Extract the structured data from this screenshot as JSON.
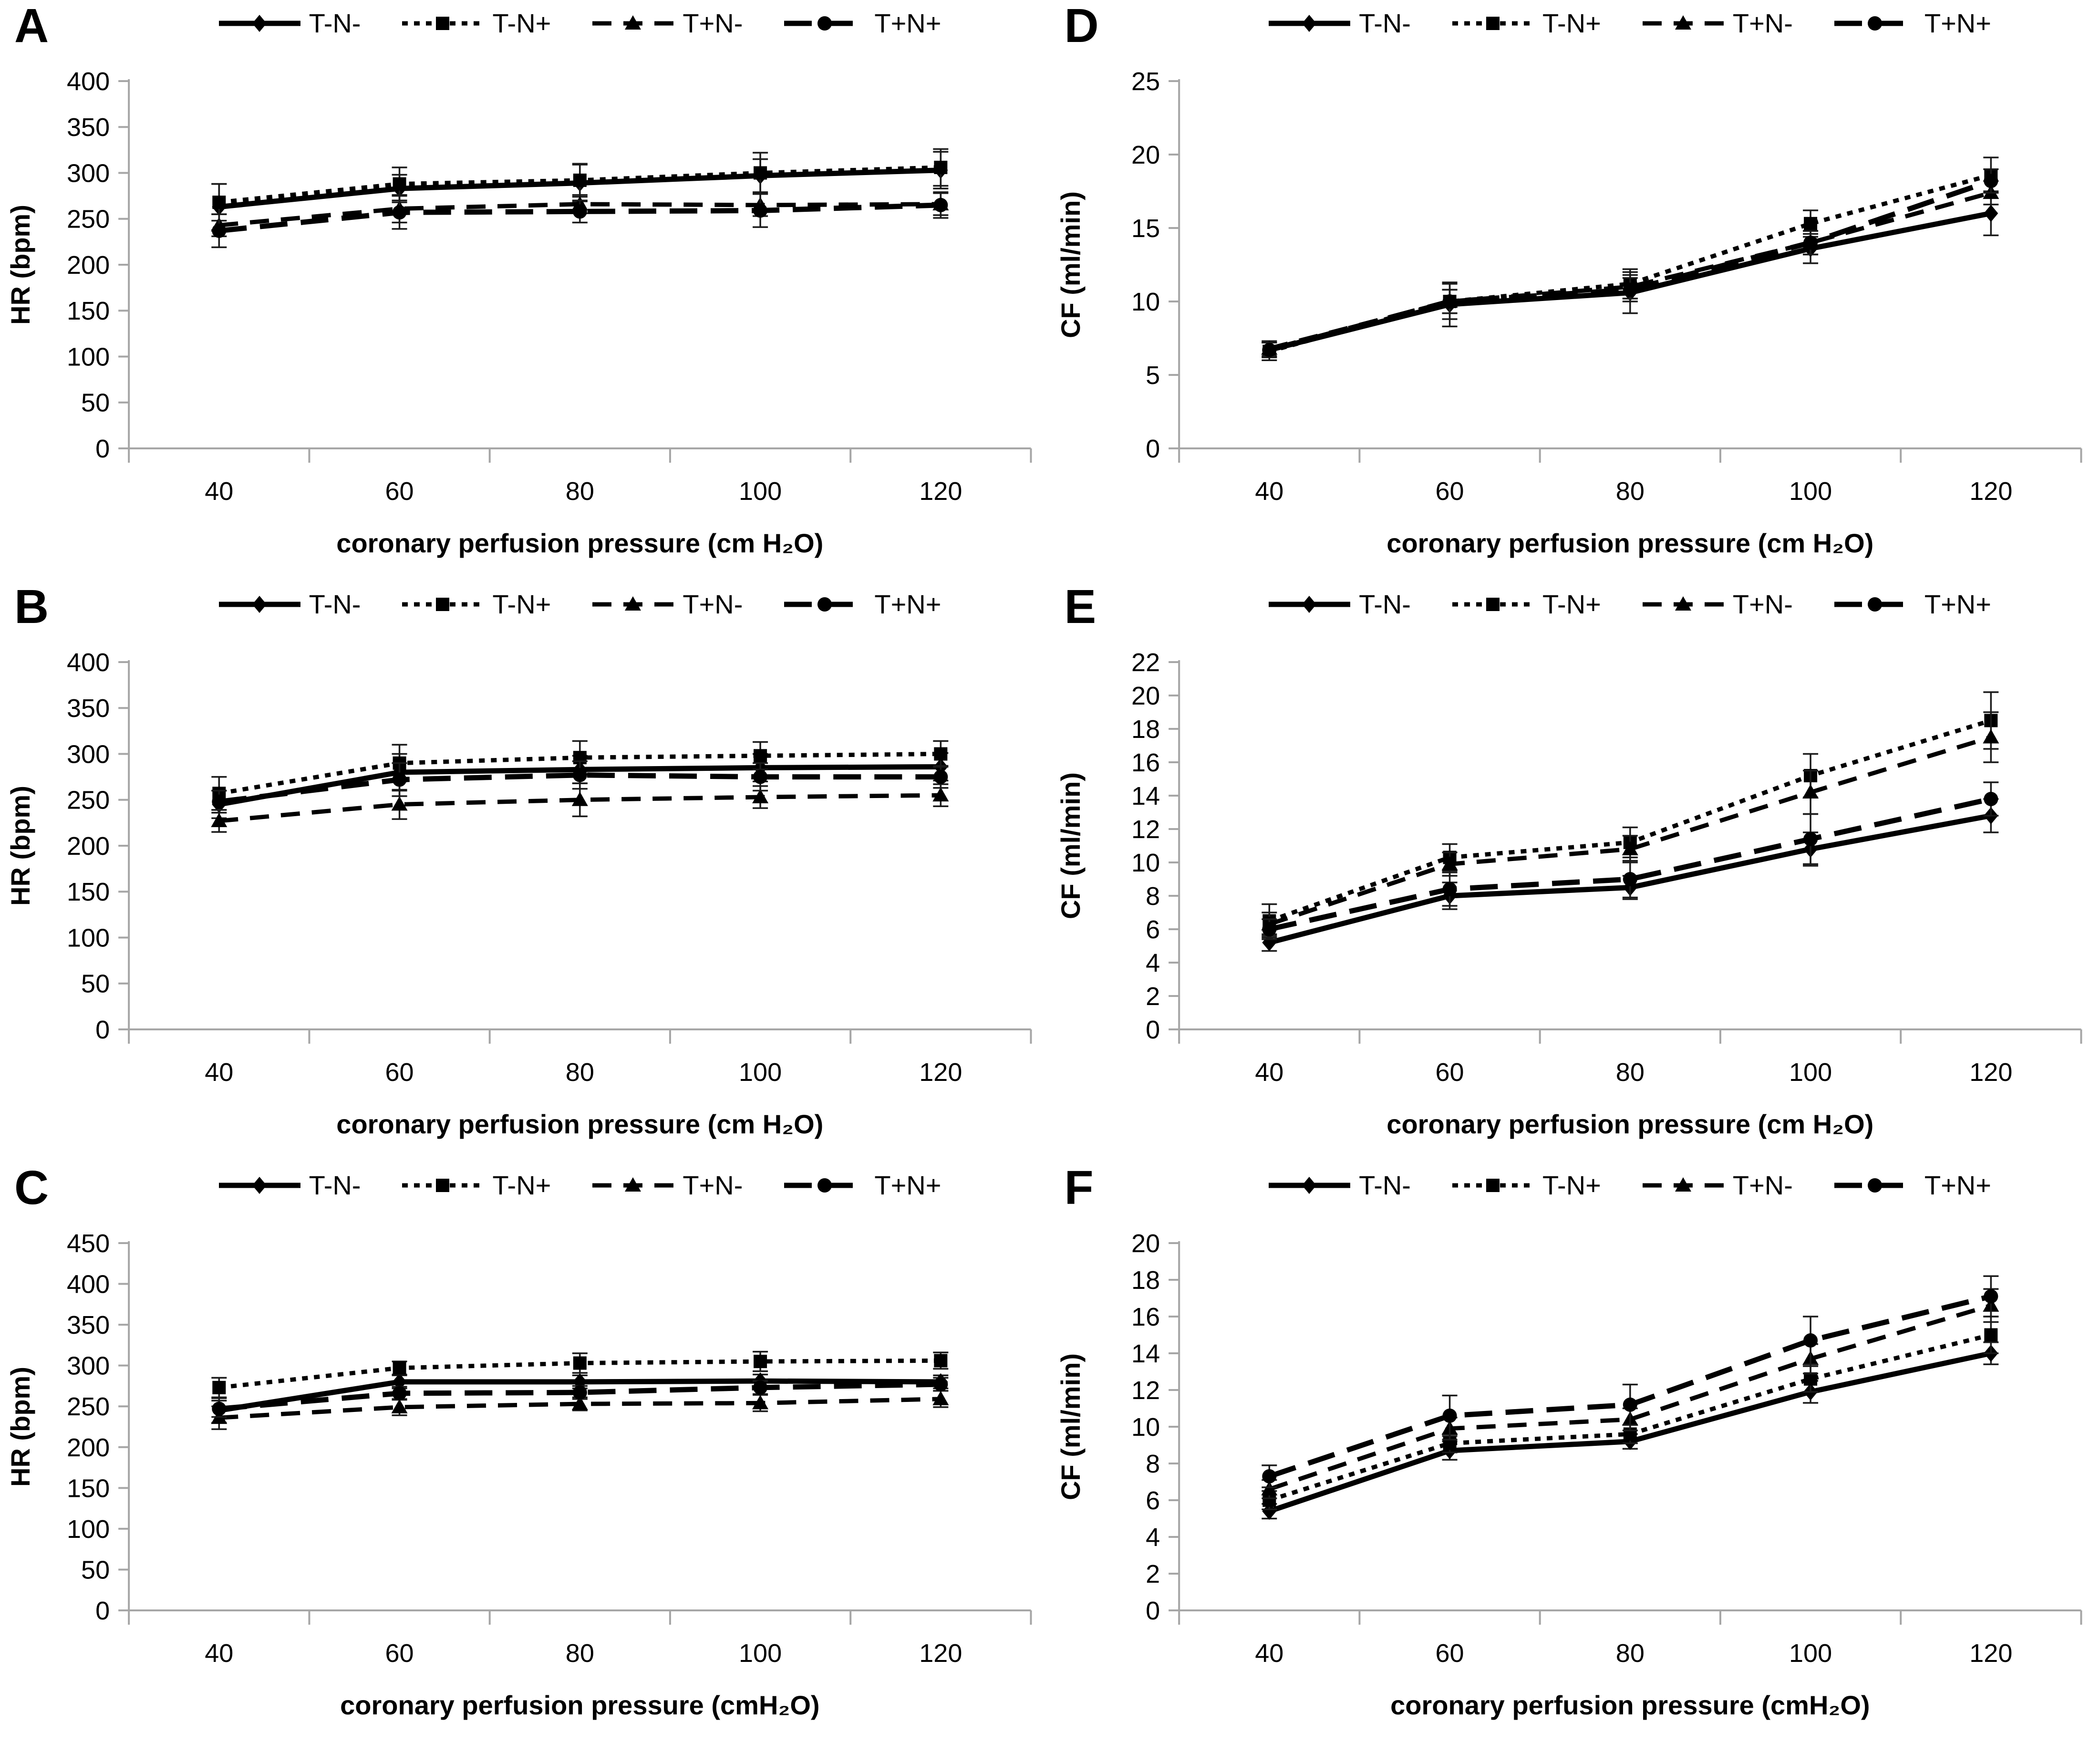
{
  "figure": {
    "legend": [
      {
        "label": "T-N-",
        "marker": "diamond",
        "line": "solid"
      },
      {
        "label": "T-N+",
        "marker": "square",
        "line": "dotted"
      },
      {
        "label": "T+N-",
        "marker": "triangle",
        "line": "dashed"
      },
      {
        "label": "T+N+",
        "marker": "circle",
        "line": "longdash"
      }
    ],
    "colors": {
      "series": "#000000",
      "axis": "#a6a6a6",
      "error_bar": "#1a1a1a",
      "background": "#ffffff"
    }
  },
  "chart_data": [
    {
      "panel_label": "A",
      "type": "line",
      "grid": false,
      "legend_position": "top",
      "ylabel": "HR (bpm)",
      "xlabel": "coronary perfusion pressure (cm H₂O)",
      "categories": [
        40,
        60,
        80,
        100,
        120
      ],
      "ylim": [
        0,
        400
      ],
      "ytick_step": 50,
      "series": [
        {
          "name": "T-N-",
          "marker": "diamond",
          "line": "solid",
          "values": [
            263,
            283,
            289,
            297,
            303
          ],
          "errors": [
            25,
            15,
            20,
            18,
            20
          ]
        },
        {
          "name": "T-N+",
          "marker": "square",
          "line": "dotted",
          "values": [
            268,
            288,
            292,
            300,
            306
          ],
          "errors": [
            20,
            18,
            18,
            22,
            20
          ]
        },
        {
          "name": "T+N-",
          "marker": "triangle",
          "line": "dashed",
          "values": [
            243,
            261,
            266,
            265,
            266
          ],
          "errors": [
            12,
            15,
            10,
            12,
            12
          ]
        },
        {
          "name": "T+N+",
          "marker": "circle",
          "line": "longdash",
          "values": [
            237,
            257,
            258,
            259,
            265
          ],
          "errors": [
            18,
            18,
            12,
            18,
            14
          ]
        }
      ]
    },
    {
      "panel_label": "B",
      "type": "line",
      "grid": false,
      "legend_position": "top",
      "ylabel": "HR (bpm)",
      "xlabel": "coronary perfusion pressure (cm H₂O)",
      "categories": [
        40,
        60,
        80,
        100,
        120
      ],
      "ylim": [
        0,
        400
      ],
      "ytick_step": 50,
      "series": [
        {
          "name": "T-N-",
          "marker": "diamond",
          "line": "solid",
          "values": [
            245,
            280,
            283,
            285,
            286
          ],
          "errors": [
            15,
            20,
            15,
            15,
            15
          ]
        },
        {
          "name": "T-N+",
          "marker": "square",
          "line": "dotted",
          "values": [
            257,
            290,
            296,
            298,
            300
          ],
          "errors": [
            18,
            20,
            18,
            15,
            14
          ]
        },
        {
          "name": "T+N-",
          "marker": "triangle",
          "line": "dashed",
          "values": [
            227,
            245,
            250,
            253,
            255
          ],
          "errors": [
            12,
            16,
            18,
            12,
            12
          ]
        },
        {
          "name": "T+N+",
          "marker": "circle",
          "line": "longdash",
          "values": [
            248,
            272,
            277,
            275,
            275
          ],
          "errors": [
            12,
            18,
            15,
            15,
            12
          ]
        }
      ]
    },
    {
      "panel_label": "C",
      "type": "line",
      "grid": false,
      "legend_position": "top",
      "ylabel": "HR (bpm)",
      "xlabel": "coronary perfusion pressure (cmH₂O)",
      "categories": [
        40,
        60,
        80,
        100,
        120
      ],
      "ylim": [
        0,
        450
      ],
      "ytick_step": 50,
      "series": [
        {
          "name": "T-N-",
          "marker": "diamond",
          "line": "solid",
          "values": [
            245,
            280,
            280,
            281,
            280
          ],
          "errors": [
            15,
            8,
            8,
            8,
            8
          ]
        },
        {
          "name": "T-N+",
          "marker": "square",
          "line": "dotted",
          "values": [
            273,
            297,
            303,
            305,
            306
          ],
          "errors": [
            12,
            8,
            12,
            12,
            10
          ]
        },
        {
          "name": "T+N-",
          "marker": "triangle",
          "line": "dashed",
          "values": [
            236,
            249,
            253,
            254,
            259
          ],
          "errors": [
            14,
            10,
            8,
            10,
            10
          ]
        },
        {
          "name": "T+N+",
          "marker": "circle",
          "line": "longdash",
          "values": [
            247,
            266,
            267,
            273,
            277
          ],
          "errors": [
            10,
            8,
            8,
            8,
            8
          ]
        }
      ]
    },
    {
      "panel_label": "D",
      "type": "line",
      "grid": false,
      "legend_position": "top",
      "ylabel": "CF (ml/min)",
      "xlabel": "coronary perfusion pressure (cm H₂O)",
      "categories": [
        40,
        60,
        80,
        100,
        120
      ],
      "ylim": [
        0,
        25
      ],
      "ytick_step": 5,
      "series": [
        {
          "name": "T-N-",
          "marker": "diamond",
          "line": "solid",
          "values": [
            6.7,
            9.8,
            10.6,
            13.6,
            16.0
          ],
          "errors": [
            0.5,
            1.5,
            1.4,
            1.0,
            1.5
          ]
        },
        {
          "name": "T-N+",
          "marker": "square",
          "line": "dotted",
          "values": [
            6.6,
            10.0,
            11.2,
            15.3,
            18.6
          ],
          "errors": [
            0.6,
            1.2,
            1.0,
            0.9,
            1.2
          ]
        },
        {
          "name": "T+N-",
          "marker": "triangle",
          "line": "dashed",
          "values": [
            6.8,
            10.0,
            11.0,
            14.0,
            17.4
          ],
          "errors": [
            0.5,
            0.8,
            0.8,
            0.8,
            0.8
          ]
        },
        {
          "name": "T+N+",
          "marker": "circle",
          "line": "longdash",
          "values": [
            6.7,
            10.0,
            10.8,
            14.0,
            18.2
          ],
          "errors": [
            0.5,
            0.8,
            0.8,
            0.8,
            0.8
          ]
        }
      ]
    },
    {
      "panel_label": "E",
      "type": "line",
      "grid": false,
      "legend_position": "top",
      "ylabel": "CF (ml/min)",
      "xlabel": "coronary perfusion pressure (cm H₂O)",
      "categories": [
        40,
        60,
        80,
        100,
        120
      ],
      "ylim": [
        0,
        22
      ],
      "ytick_step": 2,
      "series": [
        {
          "name": "T-N-",
          "marker": "diamond",
          "line": "solid",
          "values": [
            5.2,
            8.0,
            8.5,
            10.8,
            12.8
          ],
          "errors": [
            0.5,
            0.8,
            0.7,
            1.0,
            1.0
          ]
        },
        {
          "name": "T-N+",
          "marker": "square",
          "line": "dotted",
          "values": [
            6.5,
            10.3,
            11.2,
            15.2,
            18.5
          ],
          "errors": [
            1.0,
            0.8,
            0.9,
            1.3,
            1.7
          ]
        },
        {
          "name": "T+N-",
          "marker": "triangle",
          "line": "dashed",
          "values": [
            6.3,
            9.9,
            10.8,
            14.2,
            17.5
          ],
          "errors": [
            0.7,
            0.7,
            0.8,
            1.3,
            1.5
          ]
        },
        {
          "name": "T+N+",
          "marker": "circle",
          "line": "longdash",
          "values": [
            6.0,
            8.4,
            9.0,
            11.4,
            13.8
          ],
          "errors": [
            0.6,
            1.0,
            1.1,
            1.5,
            1.0
          ]
        }
      ]
    },
    {
      "panel_label": "F",
      "type": "line",
      "grid": false,
      "legend_position": "top",
      "ylabel": "CF (ml/min)",
      "xlabel": "coronary perfusion pressure (cmH₂O)",
      "categories": [
        40,
        60,
        80,
        100,
        120
      ],
      "ylim": [
        0,
        20
      ],
      "ytick_step": 2,
      "series": [
        {
          "name": "T-N-",
          "marker": "diamond",
          "line": "solid",
          "values": [
            5.4,
            8.7,
            9.2,
            11.9,
            14.0
          ],
          "errors": [
            0.4,
            0.5,
            0.4,
            0.6,
            0.6
          ]
        },
        {
          "name": "T-N+",
          "marker": "square",
          "line": "dotted",
          "values": [
            6.0,
            9.1,
            9.6,
            12.6,
            15.0
          ],
          "errors": [
            0.5,
            0.5,
            0.5,
            0.7,
            1.0
          ]
        },
        {
          "name": "T+N-",
          "marker": "triangle",
          "line": "dashed",
          "values": [
            6.6,
            9.9,
            10.4,
            13.7,
            16.6
          ],
          "errors": [
            0.5,
            0.6,
            0.6,
            0.8,
            0.9
          ]
        },
        {
          "name": "T+N+",
          "marker": "circle",
          "line": "longdash",
          "values": [
            7.3,
            10.6,
            11.2,
            14.7,
            17.1
          ],
          "errors": [
            0.6,
            1.1,
            1.1,
            1.3,
            1.1
          ]
        }
      ]
    }
  ]
}
